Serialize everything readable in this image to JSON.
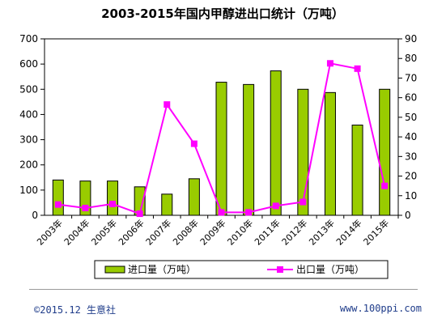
{
  "chart_data": {
    "type": "bar",
    "title": "2003-2015年国内甲醇进出口统计（万吨）",
    "categories": [
      "2003年",
      "2004年",
      "2005年",
      "2006年",
      "2007年",
      "2008年",
      "2009年",
      "2010年",
      "2011年",
      "2012年",
      "2013年",
      "2014年",
      "2015年"
    ],
    "y_left": {
      "min": 0,
      "max": 700,
      "ticks": [
        0,
        100,
        200,
        300,
        400,
        500,
        600,
        700
      ]
    },
    "y_right": {
      "min": 0,
      "max": 90,
      "ticks": [
        0,
        10,
        20,
        30,
        40,
        50,
        60,
        70,
        80,
        90
      ]
    },
    "series": [
      {
        "name": "进口量（万吨）",
        "type": "bar",
        "axis": "left",
        "color": "#99cc00",
        "values": [
          140,
          136,
          136,
          113,
          84,
          145,
          528,
          519,
          573,
          500,
          487,
          358,
          500
        ]
      },
      {
        "name": "出口量（万吨）",
        "type": "line",
        "axis": "right",
        "color": "#ff00ff",
        "values": [
          5.5,
          3.7,
          5.8,
          0.8,
          56.5,
          36.5,
          1.5,
          1.5,
          4.8,
          6.8,
          77.5,
          74.8,
          15
        ]
      }
    ],
    "legend_position": "bottom",
    "grid": false
  },
  "footer": {
    "left": "©2015.12 生意社",
    "right": "www.100ppi.com"
  }
}
